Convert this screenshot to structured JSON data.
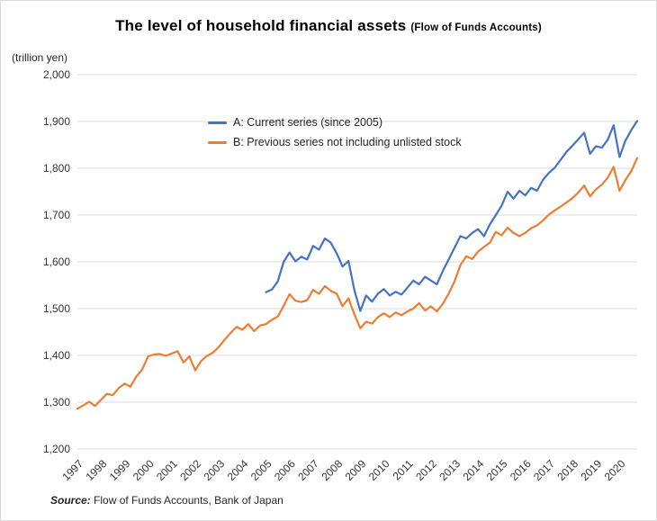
{
  "header": {
    "title_main": "The level of household financial assets",
    "title_paren": "(Flow of Funds Accounts)"
  },
  "source": {
    "label": "Source:",
    "text": " Flow of Funds Accounts, Bank of Japan"
  },
  "colors": {
    "series_a": "#4472C4",
    "series_b": "#ED7D31",
    "grid": "#D9D9D9",
    "tick_text": "#333333"
  },
  "chart_data": {
    "type": "line",
    "title": "The level of household financial assets (Flow of Funds Accounts)",
    "ylabel": "(trillion yen)",
    "xlabel": "",
    "ylim": [
      1200,
      2000
    ],
    "y_ticks": [
      1200,
      1300,
      1400,
      1500,
      1600,
      1700,
      1800,
      1900,
      2000
    ],
    "x_tick_years": [
      1997,
      1998,
      1999,
      2000,
      2001,
      2002,
      2003,
      2004,
      2005,
      2006,
      2007,
      2008,
      2009,
      2010,
      2011,
      2012,
      2013,
      2014,
      2015,
      2016,
      2017,
      2018,
      2019,
      2020
    ],
    "x_frequency": "quarterly",
    "x_start_year": 1997,
    "total_points": 96,
    "grid": "horizontal",
    "legend_position": "inside-top-center",
    "series": [
      {
        "name": "A: Current series (since 2005)",
        "color": "#4472C4",
        "start_year": 2005,
        "values": [
          1535,
          1541,
          1558,
          1600,
          1620,
          1601,
          1611,
          1605,
          1634,
          1626,
          1650,
          1641,
          1618,
          1590,
          1602,
          1540,
          1495,
          1528,
          1515,
          1532,
          1542,
          1528,
          1536,
          1530,
          1545,
          1560,
          1552,
          1568,
          1560,
          1552,
          1580,
          1605,
          1630,
          1655,
          1650,
          1662,
          1670,
          1655,
          1680,
          1700,
          1720,
          1750,
          1735,
          1752,
          1742,
          1758,
          1752,
          1775,
          1790,
          1801,
          1818,
          1835,
          1848,
          1862,
          1876,
          1831,
          1847,
          1844,
          1861,
          1892,
          1824,
          1859,
          1882,
          1901
        ]
      },
      {
        "name": "B: Previous series not including unlisted stock",
        "color": "#ED7D31",
        "start_year": 1997,
        "values": [
          1286,
          1293,
          1301,
          1292,
          1305,
          1318,
          1315,
          1330,
          1340,
          1333,
          1355,
          1370,
          1398,
          1402,
          1403,
          1399,
          1404,
          1409,
          1385,
          1398,
          1368,
          1388,
          1399,
          1406,
          1418,
          1434,
          1448,
          1461,
          1455,
          1467,
          1452,
          1464,
          1467,
          1476,
          1483,
          1506,
          1531,
          1517,
          1514,
          1518,
          1540,
          1532,
          1548,
          1538,
          1532,
          1505,
          1522,
          1488,
          1458,
          1472,
          1468,
          1482,
          1490,
          1482,
          1492,
          1486,
          1494,
          1500,
          1512,
          1496,
          1505,
          1494,
          1510,
          1532,
          1558,
          1593,
          1612,
          1606,
          1622,
          1632,
          1641,
          1664,
          1657,
          1673,
          1662,
          1655,
          1662,
          1672,
          1678,
          1688,
          1701,
          1710,
          1718,
          1727,
          1736,
          1748,
          1763,
          1740,
          1755,
          1765,
          1780,
          1803,
          1752,
          1775,
          1794,
          1822
        ]
      }
    ]
  }
}
